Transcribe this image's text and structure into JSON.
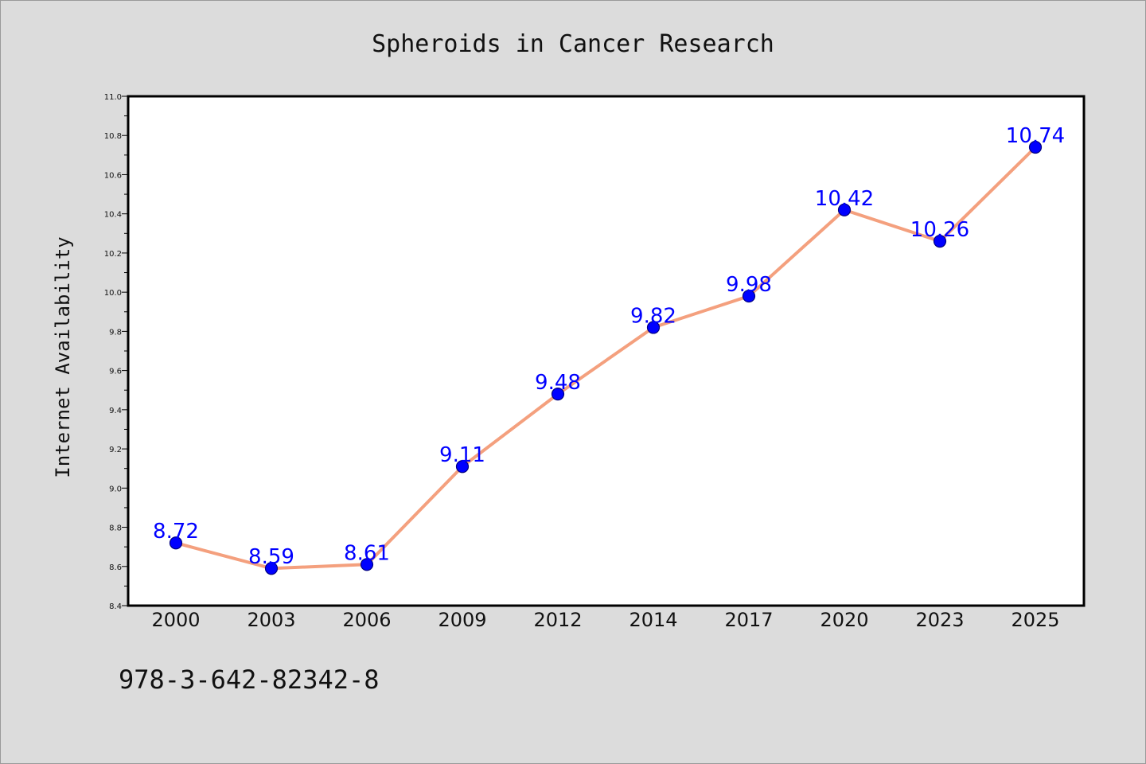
{
  "footer_text": "978-3-642-82342-8",
  "colors": {
    "background": "#dcdcdc",
    "plot_background": "#ffffff",
    "line": "#f4a07e",
    "marker_fill": "#0000ff",
    "marker_stroke": "#000080",
    "data_label": "#0000ff"
  },
  "chart_data": {
    "type": "line",
    "title": "Spheroids in Cancer Research",
    "xlabel": "",
    "ylabel": "Internet Availability",
    "categories": [
      "2000",
      "2003",
      "2006",
      "2009",
      "2012",
      "2014",
      "2017",
      "2020",
      "2023",
      "2025"
    ],
    "series": [
      {
        "values": [
          8.72,
          8.59,
          8.61,
          9.11,
          9.48,
          9.82,
          9.98,
          10.42,
          10.26,
          10.74
        ]
      }
    ],
    "data_labels": [
      "8.72",
      "8.59",
      "8.61",
      "9.11",
      "9.48",
      "9.82",
      "9.98",
      "10.42",
      "10.26",
      "10.74"
    ],
    "ylim": [
      8.4,
      11.0
    ],
    "yticks": [
      "8.4",
      "8.6",
      "8.8",
      "9.0",
      "9.2",
      "9.4",
      "9.6",
      "9.8",
      "10.0",
      "10.2",
      "10.4",
      "10.6",
      "10.8",
      "11.0"
    ],
    "grid": false,
    "legend": "none"
  }
}
